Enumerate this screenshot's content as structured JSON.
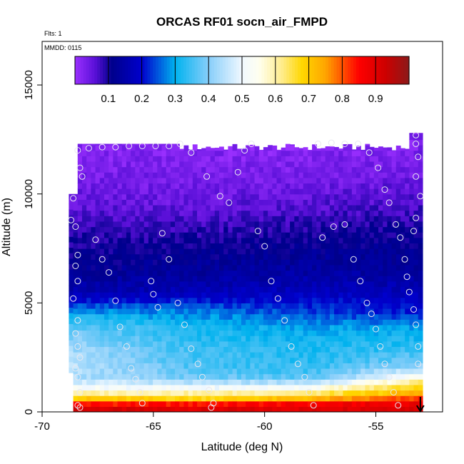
{
  "chart_data": {
    "type": "heatmap",
    "title": "ORCAS RF01 socn_air_FMPD",
    "annotations": {
      "flights": "Flts: 1",
      "date": "MMDD: 0115"
    },
    "xlabel": "Latitude (deg N)",
    "ylabel": "Altitude (m)",
    "xlim": [
      -70,
      -52
    ],
    "ylim": [
      0,
      17000
    ],
    "x_ticks": [
      -70,
      -65,
      -60,
      -55
    ],
    "x_tick_labels": [
      "-70",
      "-65",
      "-60",
      "-55"
    ],
    "y_ticks": [
      0,
      5000,
      10000,
      15000
    ],
    "y_tick_labels": [
      "0",
      "5000",
      "10000",
      "15000"
    ],
    "colorbar": {
      "range": [
        0,
        1
      ],
      "ticks": [
        0.1,
        0.2,
        0.3,
        0.4,
        0.5,
        0.6,
        0.7,
        0.8,
        0.9
      ],
      "tick_labels": [
        "0.1",
        "0.2",
        "0.3",
        "0.4",
        "0.5",
        "0.6",
        "0.7",
        "0.8",
        "0.9"
      ],
      "stops": [
        {
          "v": 0.0,
          "c": "#9b30ff"
        },
        {
          "v": 0.06,
          "c": "#5a10d8"
        },
        {
          "v": 0.11,
          "c": "#00008b"
        },
        {
          "v": 0.2,
          "c": "#0000cd"
        },
        {
          "v": 0.3,
          "c": "#00b2ee"
        },
        {
          "v": 0.4,
          "c": "#87cefa"
        },
        {
          "v": 0.5,
          "c": "#f0f8ff"
        },
        {
          "v": 0.55,
          "c": "#fffff0"
        },
        {
          "v": 0.62,
          "c": "#ffec8b"
        },
        {
          "v": 0.68,
          "c": "#ffd700"
        },
        {
          "v": 0.75,
          "c": "#ffa500"
        },
        {
          "v": 0.85,
          "c": "#ff0000"
        },
        {
          "v": 0.93,
          "c": "#cd0000"
        },
        {
          "v": 1.0,
          "c": "#8b1a1a"
        }
      ]
    },
    "field": {
      "lat_range": [
        -68.8,
        -52.9
      ],
      "altitude_layers_m": [
        {
          "alt": 125,
          "values": [
            0.92,
            0.9,
            0.9,
            0.92
          ]
        },
        {
          "alt": 375,
          "values": [
            0.84,
            0.84,
            0.86,
            0.88
          ]
        },
        {
          "alt": 625,
          "values": [
            0.7,
            0.68,
            0.72,
            0.82
          ]
        },
        {
          "alt": 875,
          "values": [
            0.6,
            0.6,
            0.62,
            0.74
          ]
        },
        {
          "alt": 1200,
          "values": [
            0.5,
            0.48,
            0.5,
            0.68
          ]
        },
        {
          "alt": 1600,
          "values": [
            0.44,
            0.38,
            0.36,
            0.55
          ]
        },
        {
          "alt": 2200,
          "values": [
            0.45,
            0.35,
            0.33,
            0.4
          ]
        },
        {
          "alt": 3000,
          "values": [
            0.42,
            0.34,
            0.32,
            0.33
          ]
        },
        {
          "alt": 3800,
          "values": [
            0.38,
            0.32,
            0.3,
            0.3
          ]
        },
        {
          "alt": 4500,
          "values": [
            0.3,
            0.28,
            0.24,
            0.22
          ]
        },
        {
          "alt": 5500,
          "values": [
            0.16,
            0.17,
            0.18,
            0.17
          ]
        },
        {
          "alt": 6500,
          "values": [
            0.12,
            0.13,
            0.14,
            0.13
          ]
        },
        {
          "alt": 7500,
          "values": [
            0.1,
            0.11,
            0.12,
            0.12
          ]
        },
        {
          "alt": 8500,
          "values": [
            0.08,
            0.08,
            0.09,
            0.1
          ]
        },
        {
          "alt": 9500,
          "values": [
            0.05,
            0.05,
            0.06,
            0.07
          ]
        },
        {
          "alt": 11000,
          "values": [
            0.03,
            0.03,
            0.03,
            0.04
          ]
        },
        {
          "alt": 12200,
          "values": [
            0.02,
            0.02,
            0.02,
            0.03
          ]
        }
      ],
      "lat_anchors": [
        -68.8,
        -63,
        -58,
        -52.9
      ],
      "top_altitude_m": 12300,
      "observation_points_lat_alt": [
        [
          -68.7,
          8800
        ],
        [
          -68.6,
          9800
        ],
        [
          -68.5,
          8500
        ],
        [
          -68.4,
          7200
        ],
        [
          -68.5,
          6700
        ],
        [
          -68.4,
          6000
        ],
        [
          -68.6,
          5200
        ],
        [
          -68.4,
          4200
        ],
        [
          -68.5,
          3600
        ],
        [
          -68.4,
          3000
        ],
        [
          -68.3,
          2500
        ],
        [
          -68.5,
          2000
        ],
        [
          -68.4,
          1600
        ],
        [
          -68.3,
          900
        ],
        [
          -68.4,
          300
        ],
        [
          -68.3,
          200
        ],
        [
          -68.4,
          12000
        ],
        [
          -68.3,
          11200
        ],
        [
          -68.2,
          10800
        ],
        [
          -67.9,
          12100
        ],
        [
          -67.3,
          12150
        ],
        [
          -66.7,
          12150
        ],
        [
          -66.1,
          12200
        ],
        [
          -65.5,
          12200
        ],
        [
          -64.9,
          12200
        ],
        [
          -64.3,
          12200
        ],
        [
          -63.8,
          12300
        ],
        [
          -63.3,
          11900
        ],
        [
          -67.6,
          7900
        ],
        [
          -67.3,
          7000
        ],
        [
          -67.0,
          6400
        ],
        [
          -66.7,
          5100
        ],
        [
          -66.5,
          3900
        ],
        [
          -66.2,
          3000
        ],
        [
          -66.0,
          2000
        ],
        [
          -65.8,
          1500
        ],
        [
          -65.6,
          900
        ],
        [
          -65.5,
          400
        ],
        [
          -65.1,
          6000
        ],
        [
          -65.0,
          5400
        ],
        [
          -64.8,
          4800
        ],
        [
          -64.6,
          8200
        ],
        [
          -64.3,
          7000
        ],
        [
          -63.9,
          5000
        ],
        [
          -63.6,
          4000
        ],
        [
          -63.3,
          2900
        ],
        [
          -63.0,
          2200
        ],
        [
          -62.8,
          1600
        ],
        [
          -62.5,
          1000
        ],
        [
          -62.3,
          400
        ],
        [
          -62.4,
          200
        ],
        [
          -62.6,
          10800
        ],
        [
          -62.0,
          9900
        ],
        [
          -61.6,
          9600
        ],
        [
          -61.2,
          11000
        ],
        [
          -60.9,
          12000
        ],
        [
          -60.6,
          12300
        ],
        [
          -60.3,
          8300
        ],
        [
          -60.0,
          7600
        ],
        [
          -59.7,
          6000
        ],
        [
          -59.4,
          5200
        ],
        [
          -59.1,
          4200
        ],
        [
          -58.8,
          3000
        ],
        [
          -58.5,
          2200
        ],
        [
          -58.2,
          1600
        ],
        [
          -58.0,
          900
        ],
        [
          -57.8,
          300
        ],
        [
          -57.6,
          12300
        ],
        [
          -57.0,
          12350
        ],
        [
          -56.4,
          12300
        ],
        [
          -55.8,
          12300
        ],
        [
          -57.4,
          8000
        ],
        [
          -56.9,
          8500
        ],
        [
          -56.4,
          8600
        ],
        [
          -56.0,
          7000
        ],
        [
          -55.7,
          6000
        ],
        [
          -55.4,
          5000
        ],
        [
          -55.2,
          4500
        ],
        [
          -55.0,
          3800
        ],
        [
          -54.8,
          3000
        ],
        [
          -54.6,
          2200
        ],
        [
          -54.4,
          1600
        ],
        [
          -54.2,
          900
        ],
        [
          -54.0,
          300
        ],
        [
          -55.3,
          11900
        ],
        [
          -54.9,
          11200
        ],
        [
          -54.6,
          10200
        ],
        [
          -54.4,
          9600
        ],
        [
          -54.1,
          8600
        ],
        [
          -53.9,
          8000
        ],
        [
          -53.7,
          7000
        ],
        [
          -53.6,
          6200
        ],
        [
          -53.5,
          5500
        ],
        [
          -53.3,
          4700
        ],
        [
          -53.2,
          4000
        ],
        [
          -53.1,
          3000
        ],
        [
          -53.1,
          2200
        ],
        [
          -53.2,
          12700
        ],
        [
          -53.2,
          12300
        ],
        [
          -53.1,
          11700
        ],
        [
          -53.2,
          10800
        ],
        [
          -53.0,
          9900
        ],
        [
          -53.2,
          8900
        ],
        [
          -53.3,
          8300
        ]
      ]
    },
    "arrow_marker_lat": -53.0
  }
}
